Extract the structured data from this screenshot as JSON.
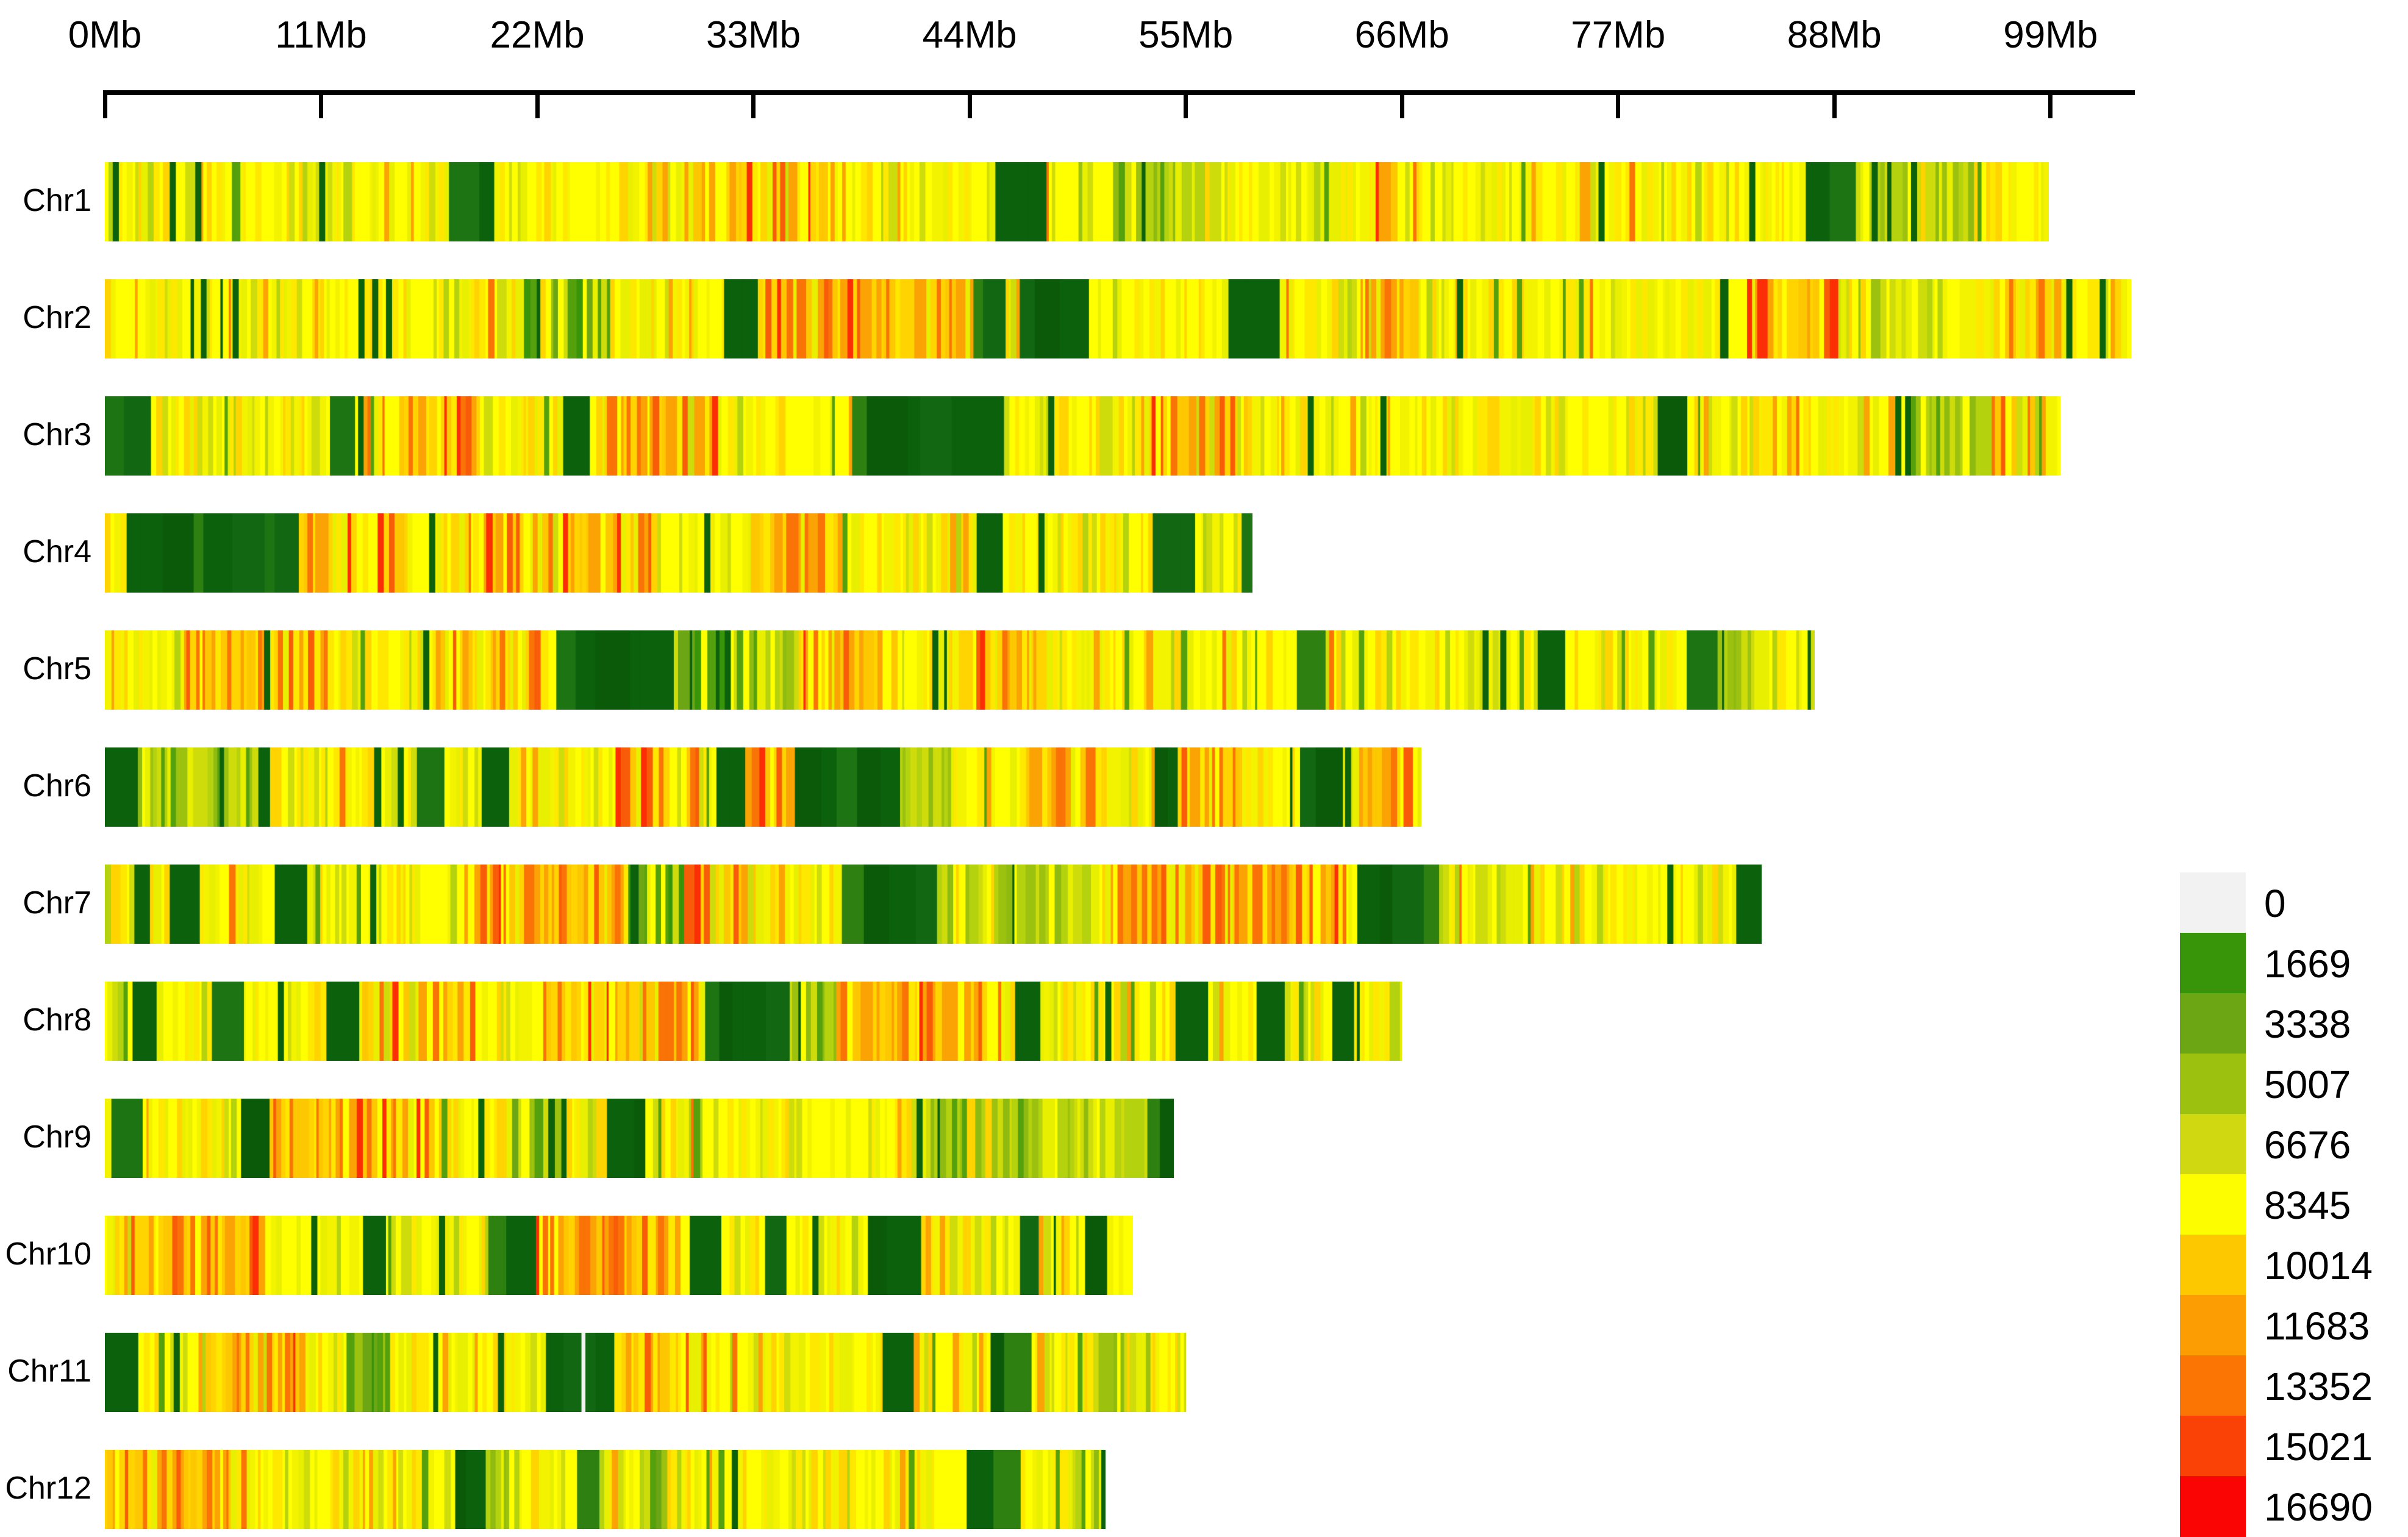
{
  "chart_data": {
    "type": "heatmap",
    "title": "",
    "x_axis": {
      "unit": "Mb",
      "tick_values": [
        0,
        11,
        22,
        33,
        44,
        55,
        66,
        77,
        88,
        99
      ],
      "tick_labels": [
        "0Mb",
        "11Mb",
        "22Mb",
        "33Mb",
        "44Mb",
        "55Mb",
        "66Mb",
        "77Mb",
        "88Mb",
        "99Mb"
      ],
      "axis_max_mb": 103.3,
      "grid": false
    },
    "legend": {
      "position": "right",
      "entries": [
        {
          "label": "0",
          "color": "#f2f2f2"
        },
        {
          "label": "1669",
          "color": "#389408"
        },
        {
          "label": "3338",
          "color": "#6ca614"
        },
        {
          "label": "5007",
          "color": "#9cc20f"
        },
        {
          "label": "6676",
          "color": "#cfd810"
        },
        {
          "label": "8345",
          "color": "#fdfd00"
        },
        {
          "label": "10014",
          "color": "#fdc800"
        },
        {
          "label": "11683",
          "color": "#fc9d03"
        },
        {
          "label": "13352",
          "color": "#fa7503"
        },
        {
          "label": "15021",
          "color": "#fa4206"
        },
        {
          "label": "16690",
          "color": "#fb0404"
        }
      ]
    },
    "density_classes": {
      "y": {
        "desc": "mid density ~7000-9000, yellow mix",
        "palette": [
          [
            "#ffff00",
            30
          ],
          [
            "#f3f300",
            14
          ],
          [
            "#ffe800",
            12
          ],
          [
            "#ffd400",
            7
          ],
          [
            "#e8ef00",
            10
          ],
          [
            "#cfdc0c",
            7
          ],
          [
            "#b5d20e",
            3
          ],
          [
            "#fba205",
            3
          ],
          [
            "#f97306",
            1
          ],
          [
            "#55a00d",
            2
          ],
          [
            "#0c610c",
            1
          ]
        ]
      },
      "hot": {
        "desc": "high density ~10000-16000, gold/orange/red",
        "palette": [
          [
            "#ffd400",
            18
          ],
          [
            "#fdc701",
            15
          ],
          [
            "#fba205",
            20
          ],
          [
            "#f97306",
            12
          ],
          [
            "#ffff00",
            10
          ],
          [
            "#ffe800",
            8
          ],
          [
            "#f85c08",
            6
          ],
          [
            "#fb2e05",
            3
          ],
          [
            "#e8ef00",
            5
          ],
          [
            "#cfdc0c",
            2
          ]
        ]
      },
      "lg": {
        "desc": "low-mid density ~5000-7000, yellow-green",
        "palette": [
          [
            "#cfdc0c",
            20
          ],
          [
            "#b5d20e",
            20
          ],
          [
            "#9cc20f",
            14
          ],
          [
            "#e8ef00",
            14
          ],
          [
            "#ffff00",
            14
          ],
          [
            "#8fbb10",
            8
          ],
          [
            "#55a00d",
            5
          ],
          [
            "#ffd400",
            4
          ],
          [
            "#0c610c",
            2
          ]
        ]
      },
      "mg": {
        "desc": "low density ~2000-4000, medium green mix",
        "palette": [
          [
            "#55a00d",
            18
          ],
          [
            "#389408",
            14
          ],
          [
            "#6ca614",
            14
          ],
          [
            "#9cc20f",
            10
          ],
          [
            "#cfdc0c",
            9
          ],
          [
            "#ffff00",
            13
          ],
          [
            "#ffd400",
            4
          ],
          [
            "#0c610c",
            10
          ],
          [
            "#e8ef00",
            6
          ]
        ]
      },
      "dg": {
        "desc": "very low density <1669, dark green block",
        "palette": [
          [
            "#0c610c",
            46
          ],
          [
            "#0a5a0a",
            18
          ],
          [
            "#126812",
            18
          ],
          [
            "#1d7412",
            9
          ],
          [
            "#2e8010",
            5
          ],
          [
            "#55a00d",
            3
          ]
        ]
      },
      "w": {
        "desc": "zero density gap",
        "palette": [
          [
            "#f4f4f4",
            1
          ]
        ]
      }
    },
    "chromosomes": [
      {
        "name": "Chr1",
        "length_mb": 98.9,
        "segments": [
          [
            17.4,
            19.2,
            "dg"
          ],
          [
            29.4,
            36.7,
            "hot"
          ],
          [
            45.2,
            47.0,
            "dg"
          ],
          [
            49.5,
            57.0,
            "lg"
          ],
          [
            64.5,
            67.0,
            "hot"
          ],
          [
            86.4,
            88.2,
            "dg"
          ],
          [
            88.2,
            95.0,
            "lg"
          ]
        ],
        "thin_dark_stripes_mb": [
          0.4,
          3.3,
          4.6,
          10.9,
          76.0,
          89.9,
          91.9
        ],
        "white_gaps_mb": []
      },
      {
        "name": "Chr2",
        "length_mb": 103.1,
        "segments": [
          [
            21.2,
            25.6,
            "mg"
          ],
          [
            31.5,
            32.8,
            "dg"
          ],
          [
            33.4,
            44.1,
            "hot"
          ],
          [
            44.1,
            44.8,
            "dg"
          ],
          [
            46.4,
            48.9,
            "dg"
          ],
          [
            56.9,
            59.1,
            "dg"
          ],
          [
            63.7,
            66.8,
            "hot"
          ],
          [
            83.5,
            88.0,
            "hot"
          ],
          [
            88.0,
            93.0,
            "lg"
          ],
          [
            96.0,
            99.5,
            "hot"
          ]
        ],
        "thin_dark_stripes_mb": [
          6.5,
          12.9,
          13.6,
          14.3,
          68.8,
          82.3,
          99.8,
          101.5
        ],
        "white_gaps_mb": []
      },
      {
        "name": "Chr3",
        "length_mb": 99.5,
        "segments": [
          [
            0,
            1.3,
            "dg"
          ],
          [
            11.4,
            12.3,
            "dg"
          ],
          [
            14.0,
            19.0,
            "hot"
          ],
          [
            23.1,
            24.1,
            "dg"
          ],
          [
            25.0,
            31.0,
            "hot"
          ],
          [
            37.9,
            45.3,
            "dg"
          ],
          [
            52.3,
            58.0,
            "hot"
          ],
          [
            78.8,
            79.5,
            "dg"
          ],
          [
            91.7,
            96.0,
            "lg"
          ],
          [
            96.0,
            98.0,
            "hot"
          ]
        ],
        "thin_dark_stripes_mb": [
          48.0,
          61.2,
          64.9,
          91.1,
          91.6
        ],
        "white_gaps_mb": []
      },
      {
        "name": "Chr4",
        "length_mb": 58.4,
        "segments": [
          [
            1.0,
            9.3,
            "dg"
          ],
          [
            9.7,
            15.3,
            "hot"
          ],
          [
            18.5,
            28.0,
            "hot"
          ],
          [
            32.5,
            37.5,
            "hot"
          ],
          [
            44.2,
            45.4,
            "dg"
          ],
          [
            53.2,
            53.8,
            "dg"
          ],
          [
            54.6,
            55.1,
            "dg"
          ],
          [
            57.8,
            58.4,
            "dg"
          ]
        ],
        "thin_dark_stripes_mb": [
          16.5,
          30.5,
          47.5
        ],
        "white_gaps_mb": []
      },
      {
        "name": "Chr5",
        "length_mb": 87.0,
        "segments": [
          [
            4.0,
            11.3,
            "hot"
          ],
          [
            16.5,
            22.1,
            "hot"
          ],
          [
            22.9,
            28.2,
            "dg"
          ],
          [
            28.2,
            32.2,
            "mg"
          ],
          [
            32.2,
            35.2,
            "lg"
          ],
          [
            35.2,
            40.4,
            "hot"
          ],
          [
            43.6,
            48.0,
            "hot"
          ],
          [
            60.5,
            61.7,
            "dg"
          ],
          [
            72.9,
            74.1,
            "dg"
          ],
          [
            80.3,
            81.1,
            "dg"
          ],
          [
            81.1,
            85.0,
            "lg"
          ]
        ],
        "thin_dark_stripes_mb": [
          8.1,
          16.2,
          42.1,
          70.1,
          71.0
        ],
        "white_gaps_mb": []
      },
      {
        "name": "Chr6",
        "length_mb": 67.0,
        "segments": [
          [
            0,
            0.4,
            "dg"
          ],
          [
            0.4,
            7.8,
            "lg"
          ],
          [
            7.8,
            8.4,
            "dg"
          ],
          [
            15.8,
            16.5,
            "dg"
          ],
          [
            19.0,
            19.6,
            "dg"
          ],
          [
            25.9,
            30.1,
            "hot"
          ],
          [
            31.0,
            32.4,
            "dg"
          ],
          [
            32.4,
            35.0,
            "hot"
          ],
          [
            35.0,
            39.6,
            "dg"
          ],
          [
            39.6,
            43.0,
            "lg"
          ],
          [
            46.7,
            50.4,
            "hot"
          ],
          [
            53.4,
            54.4,
            "dg"
          ],
          [
            54.6,
            57.8,
            "hot"
          ],
          [
            60.6,
            61.7,
            "dg"
          ],
          [
            63.6,
            67.0,
            "hot"
          ]
        ],
        "thin_dark_stripes_mb": [
          13.7,
          14.9,
          63.1
        ],
        "white_gaps_mb": []
      },
      {
        "name": "Chr7",
        "length_mb": 84.3,
        "segments": [
          [
            1.3,
            2.1,
            "dg"
          ],
          [
            3.3,
            4.1,
            "dg"
          ],
          [
            8.6,
            10.0,
            "dg"
          ],
          [
            18.2,
            26.6,
            "hot"
          ],
          [
            26.6,
            29.4,
            "mg"
          ],
          [
            29.4,
            33.4,
            "hot"
          ],
          [
            37.4,
            41.5,
            "dg"
          ],
          [
            41.5,
            50.5,
            "lg"
          ],
          [
            51.3,
            55.8,
            "hot"
          ],
          [
            55.8,
            63.2,
            "hot"
          ],
          [
            63.7,
            67.4,
            "dg"
          ],
          [
            82.9,
            84.3,
            "dg"
          ]
        ],
        "thin_dark_stripes_mb": [
          13.5,
          79.5
        ],
        "white_gaps_mb": []
      },
      {
        "name": "Chr8",
        "length_mb": 66.0,
        "segments": [
          [
            1.2,
            2.2,
            "dg"
          ],
          [
            5.4,
            5.9,
            "dg"
          ],
          [
            11.2,
            11.9,
            "dg"
          ],
          [
            13.0,
            19.0,
            "hot"
          ],
          [
            22.0,
            30.5,
            "hot"
          ],
          [
            30.5,
            34.7,
            "dg"
          ],
          [
            34.7,
            37.1,
            "lg"
          ],
          [
            37.1,
            44.9,
            "hot"
          ],
          [
            46.3,
            47.2,
            "dg"
          ],
          [
            54.4,
            54.8,
            "dg"
          ],
          [
            58.5,
            59.7,
            "dg"
          ],
          [
            62.2,
            63.1,
            "dg"
          ]
        ],
        "thin_dark_stripes_mb": [
          8.8,
          50.9
        ],
        "white_gaps_mb": []
      },
      {
        "name": "Chr9",
        "length_mb": 54.4,
        "segments": [
          [
            0.1,
            0.8,
            "dg"
          ],
          [
            6.8,
            7.7,
            "dg"
          ],
          [
            7.7,
            17.0,
            "hot"
          ],
          [
            20.6,
            23.6,
            "mg"
          ],
          [
            25.5,
            27.1,
            "dg"
          ],
          [
            41.6,
            53.0,
            "lg"
          ],
          [
            53.0,
            54.4,
            "dg"
          ]
        ],
        "thin_dark_stripes_mb": [
          19.0,
          41.3
        ],
        "white_gaps_mb": []
      },
      {
        "name": "Chr10",
        "length_mb": 52.3,
        "segments": [
          [
            0.5,
            7.9,
            "hot"
          ],
          [
            13.0,
            13.9,
            "dg"
          ],
          [
            13.9,
            15.2,
            "mg"
          ],
          [
            19.5,
            20.9,
            "dg"
          ],
          [
            21.8,
            29.2,
            "hot"
          ],
          [
            29.6,
            30.6,
            "dg"
          ],
          [
            33.3,
            34.0,
            "dg"
          ],
          [
            38.7,
            39.8,
            "dg"
          ],
          [
            46.3,
            47.2,
            "dg"
          ],
          [
            49.7,
            50.7,
            "dg"
          ]
        ],
        "thin_dark_stripes_mb": [
          10.5,
          17.0,
          36.0
        ],
        "white_gaps_mb": []
      },
      {
        "name": "Chr11",
        "length_mb": 55.0,
        "segments": [
          [
            0,
            1.0,
            "dg"
          ],
          [
            5.0,
            10.0,
            "hot"
          ],
          [
            12.0,
            14.5,
            "mg"
          ],
          [
            22.4,
            25.8,
            "dg"
          ],
          [
            26.5,
            30.5,
            "hot"
          ],
          [
            39.5,
            40.3,
            "dg"
          ],
          [
            45.0,
            47.0,
            "dg"
          ],
          [
            50.0,
            53.0,
            "lg"
          ]
        ],
        "thin_dark_stripes_mb": [
          3.5,
          20.0
        ],
        "white_gaps_mb": [
          [
            24.25,
            24.45
          ]
        ]
      },
      {
        "name": "Chr12",
        "length_mb": 50.9,
        "segments": [
          [
            0,
            7.0,
            "hot"
          ],
          [
            17.7,
            19.2,
            "dg"
          ],
          [
            19.2,
            21.0,
            "lg"
          ],
          [
            23.8,
            24.7,
            "dg"
          ],
          [
            27.5,
            28.5,
            "mg"
          ],
          [
            43.8,
            46.2,
            "dg"
          ],
          [
            49.0,
            50.4,
            "lg"
          ]
        ],
        "thin_dark_stripes_mb": [
          31.9,
          50.7
        ],
        "white_gaps_mb": []
      }
    ]
  }
}
